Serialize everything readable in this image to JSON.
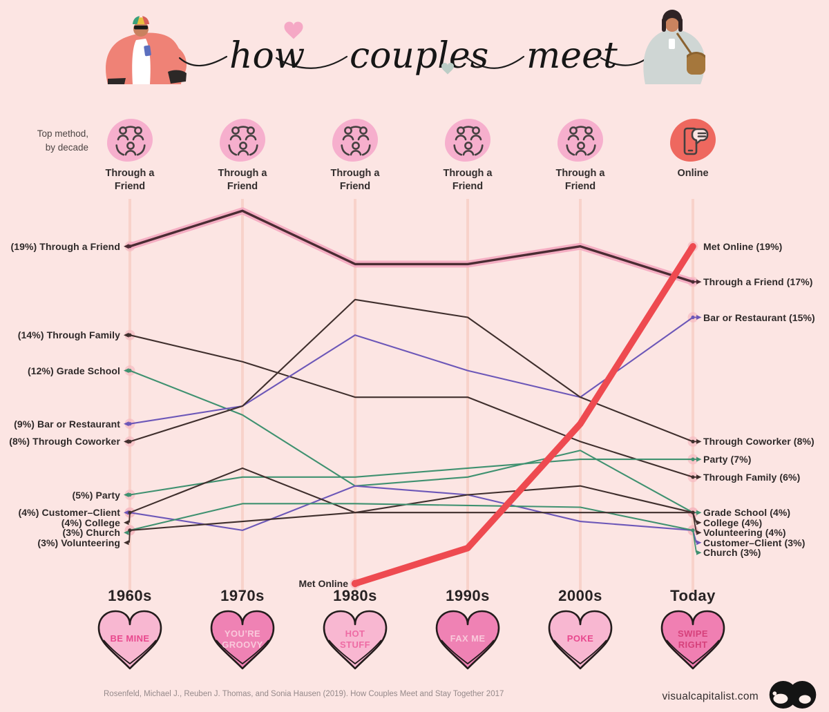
{
  "title": {
    "script": "how couples meet"
  },
  "header": {
    "caption_lines": [
      "Top method,",
      "by decade"
    ]
  },
  "top_methods": [
    {
      "decade": "1960s",
      "label": "Through a Friend",
      "icon": "people-group-icon",
      "blob_color": "#f5a9ca"
    },
    {
      "decade": "1970s",
      "label": "Through a Friend",
      "icon": "people-group-icon",
      "blob_color": "#f5a9ca"
    },
    {
      "decade": "1980s",
      "label": "Through a Friend",
      "icon": "people-group-icon",
      "blob_color": "#f5a9ca"
    },
    {
      "decade": "1990s",
      "label": "Through a Friend",
      "icon": "people-group-icon",
      "blob_color": "#f5a9ca"
    },
    {
      "decade": "2000s",
      "label": "Through a Friend",
      "icon": "people-group-icon",
      "blob_color": "#f5a9ca"
    },
    {
      "decade": "Today",
      "label": "Online",
      "icon": "phone-chat-icon",
      "blob_color": "#ec5a50"
    }
  ],
  "chart_data": {
    "type": "line",
    "x_categories": [
      "1960s",
      "1970s",
      "1980s",
      "1990s",
      "2000s",
      "Today"
    ],
    "y_unit": "percent of couples",
    "ylim": [
      0,
      21
    ],
    "grid": false,
    "legend_position": "inline-labels",
    "series": [
      {
        "name": "Through a Friend",
        "color": "#4a2c33",
        "glow_color": "#f4abc1",
        "style": "glow",
        "values": [
          19,
          21,
          18,
          18,
          19,
          17
        ],
        "left_label": "(19%) Through a Friend",
        "right_label": "Through a Friend (17%)"
      },
      {
        "name": "Through Family",
        "color": "#3f2f2d",
        "style": "normal",
        "values": [
          14,
          12.5,
          10.5,
          10.5,
          8,
          6
        ],
        "left_label": "(14%) Through Family",
        "right_label": "Through Family (6%)"
      },
      {
        "name": "Grade School",
        "color": "#3f9170",
        "style": "normal",
        "values": [
          12,
          9.5,
          5.5,
          6,
          7.5,
          4
        ],
        "left_label": "(12%) Grade School",
        "right_label": "Grade School (4%)"
      },
      {
        "name": "Bar or Restaurant",
        "color": "#6c57b8",
        "style": "normal",
        "values": [
          9,
          10,
          14,
          12,
          10.5,
          15
        ],
        "left_label": "(9%) Bar or Restaurant",
        "right_label": "Bar or Restaurant (15%)"
      },
      {
        "name": "Through Coworker",
        "color": "#3f2f2d",
        "style": "normal",
        "values": [
          8,
          10,
          16,
          15,
          10.5,
          8
        ],
        "left_label": "(8%) Through Coworker",
        "right_label": "Through Coworker (8%)"
      },
      {
        "name": "Party",
        "color": "#3f9170",
        "style": "normal",
        "values": [
          5,
          6,
          6,
          6.5,
          7,
          7
        ],
        "left_label": "(5%) Party",
        "right_label": "Party (7%)"
      },
      {
        "name": "Customer–Client",
        "color": "#6c57b8",
        "style": "normal",
        "values": [
          4,
          3,
          5.5,
          5,
          3.5,
          3
        ],
        "left_label": "(4%) Customer–Client",
        "right_label": "Customer–Client (3%)"
      },
      {
        "name": "College",
        "color": "#3f2f2d",
        "style": "normal",
        "values": [
          4,
          6.5,
          4,
          5,
          5.5,
          4
        ],
        "left_label": "(4%) College",
        "right_label": "College (4%)"
      },
      {
        "name": "Church",
        "color": "#3f9170",
        "style": "normal",
        "values": [
          3,
          4.5,
          4.5,
          4.4,
          4.3,
          3
        ],
        "left_label": "(3%) Church",
        "right_label": "Church (3%)"
      },
      {
        "name": "Volunteering",
        "color": "#3f2f2d",
        "style": "normal",
        "values": [
          3,
          3.5,
          4,
          4,
          4,
          4
        ],
        "left_label": "(3%) Volunteering",
        "right_label": "Volunteering (4%)"
      },
      {
        "name": "Met Online",
        "color": "#ee4a50",
        "style": "thick",
        "values": [
          null,
          null,
          0,
          2,
          9,
          19
        ],
        "start_label": "Met Online",
        "left_label": null,
        "right_label": "Met Online (19%)"
      }
    ]
  },
  "decade_hearts": [
    {
      "decade": "1960s",
      "heart_text": "BE MINE",
      "heart_fill": "#f8b7d1",
      "heart_text_color": "#e8478d"
    },
    {
      "decade": "1970s",
      "heart_text": "YOU’RE GROOVY",
      "heart_fill": "#ef82b4",
      "heart_text_color": "#f9c9db"
    },
    {
      "decade": "1980s",
      "heart_text": "HOT STUFF",
      "heart_fill": "#f8b7d1",
      "heart_text_color": "#ee6ba4"
    },
    {
      "decade": "1990s",
      "heart_text": "FAX ME",
      "heart_fill": "#ef82b4",
      "heart_text_color": "#f9c9db"
    },
    {
      "decade": "2000s",
      "heart_text": "POKE",
      "heart_fill": "#f8b7d1",
      "heart_text_color": "#e8478d"
    },
    {
      "decade": "Today",
      "heart_text": "SWIPE RIGHT",
      "heart_fill": "#f07fb2",
      "heart_text_color": "#d6417b"
    }
  ],
  "footer": {
    "citation": "Rosenfeld, Michael J., Reuben J. Thomas, and Sonia Hausen (2019). How Couples Meet and Stay Together 2017",
    "brand": "visualcapitalist.com"
  },
  "colors": {
    "background": "#fce5e3",
    "axis_line": "#f8d2ca",
    "halo": "#f6b8c0",
    "icon_stroke": "#454040",
    "heart_outline": "#231c1c"
  }
}
